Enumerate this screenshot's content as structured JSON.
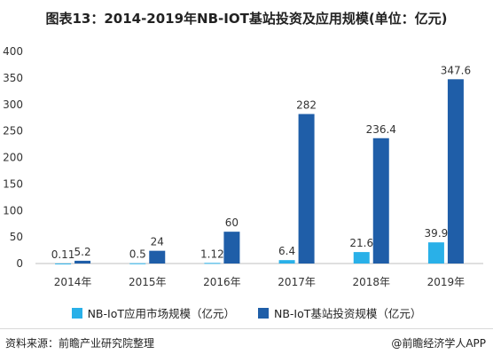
{
  "chart_data": {
    "type": "bar",
    "title": "图表13：2014-2019年NB-IOT基站投资及应用规模(单位：亿元)",
    "categories": [
      "2014年",
      "2015年",
      "2016年",
      "2017年",
      "2018年",
      "2019年"
    ],
    "series": [
      {
        "name": "NB-IoT应用市场规模（亿元）",
        "values": [
          0.11,
          0.5,
          1.12,
          6.4,
          21.6,
          39.9
        ],
        "labels": [
          "0.11",
          "0.5",
          "1.12",
          "6.4",
          "21.6",
          "39.9"
        ],
        "color": "#29b0e8"
      },
      {
        "name": "NB-IoT基站投资规模（亿元）",
        "values": [
          5.2,
          24,
          60,
          282,
          236.4,
          347.6
        ],
        "labels": [
          "5.2",
          "24",
          "60",
          "282",
          "236.4",
          "347.6"
        ],
        "color": "#1f5ea8"
      }
    ],
    "yticks": [
      "0",
      "50",
      "100",
      "150",
      "200",
      "250",
      "300",
      "350",
      "400"
    ],
    "ylim": [
      0,
      400
    ],
    "grid": false,
    "legend": "bottom-center"
  },
  "footer": {
    "source": "资料来源：前瞻产业研究院整理",
    "credit": "@前瞻经济学人APP"
  }
}
